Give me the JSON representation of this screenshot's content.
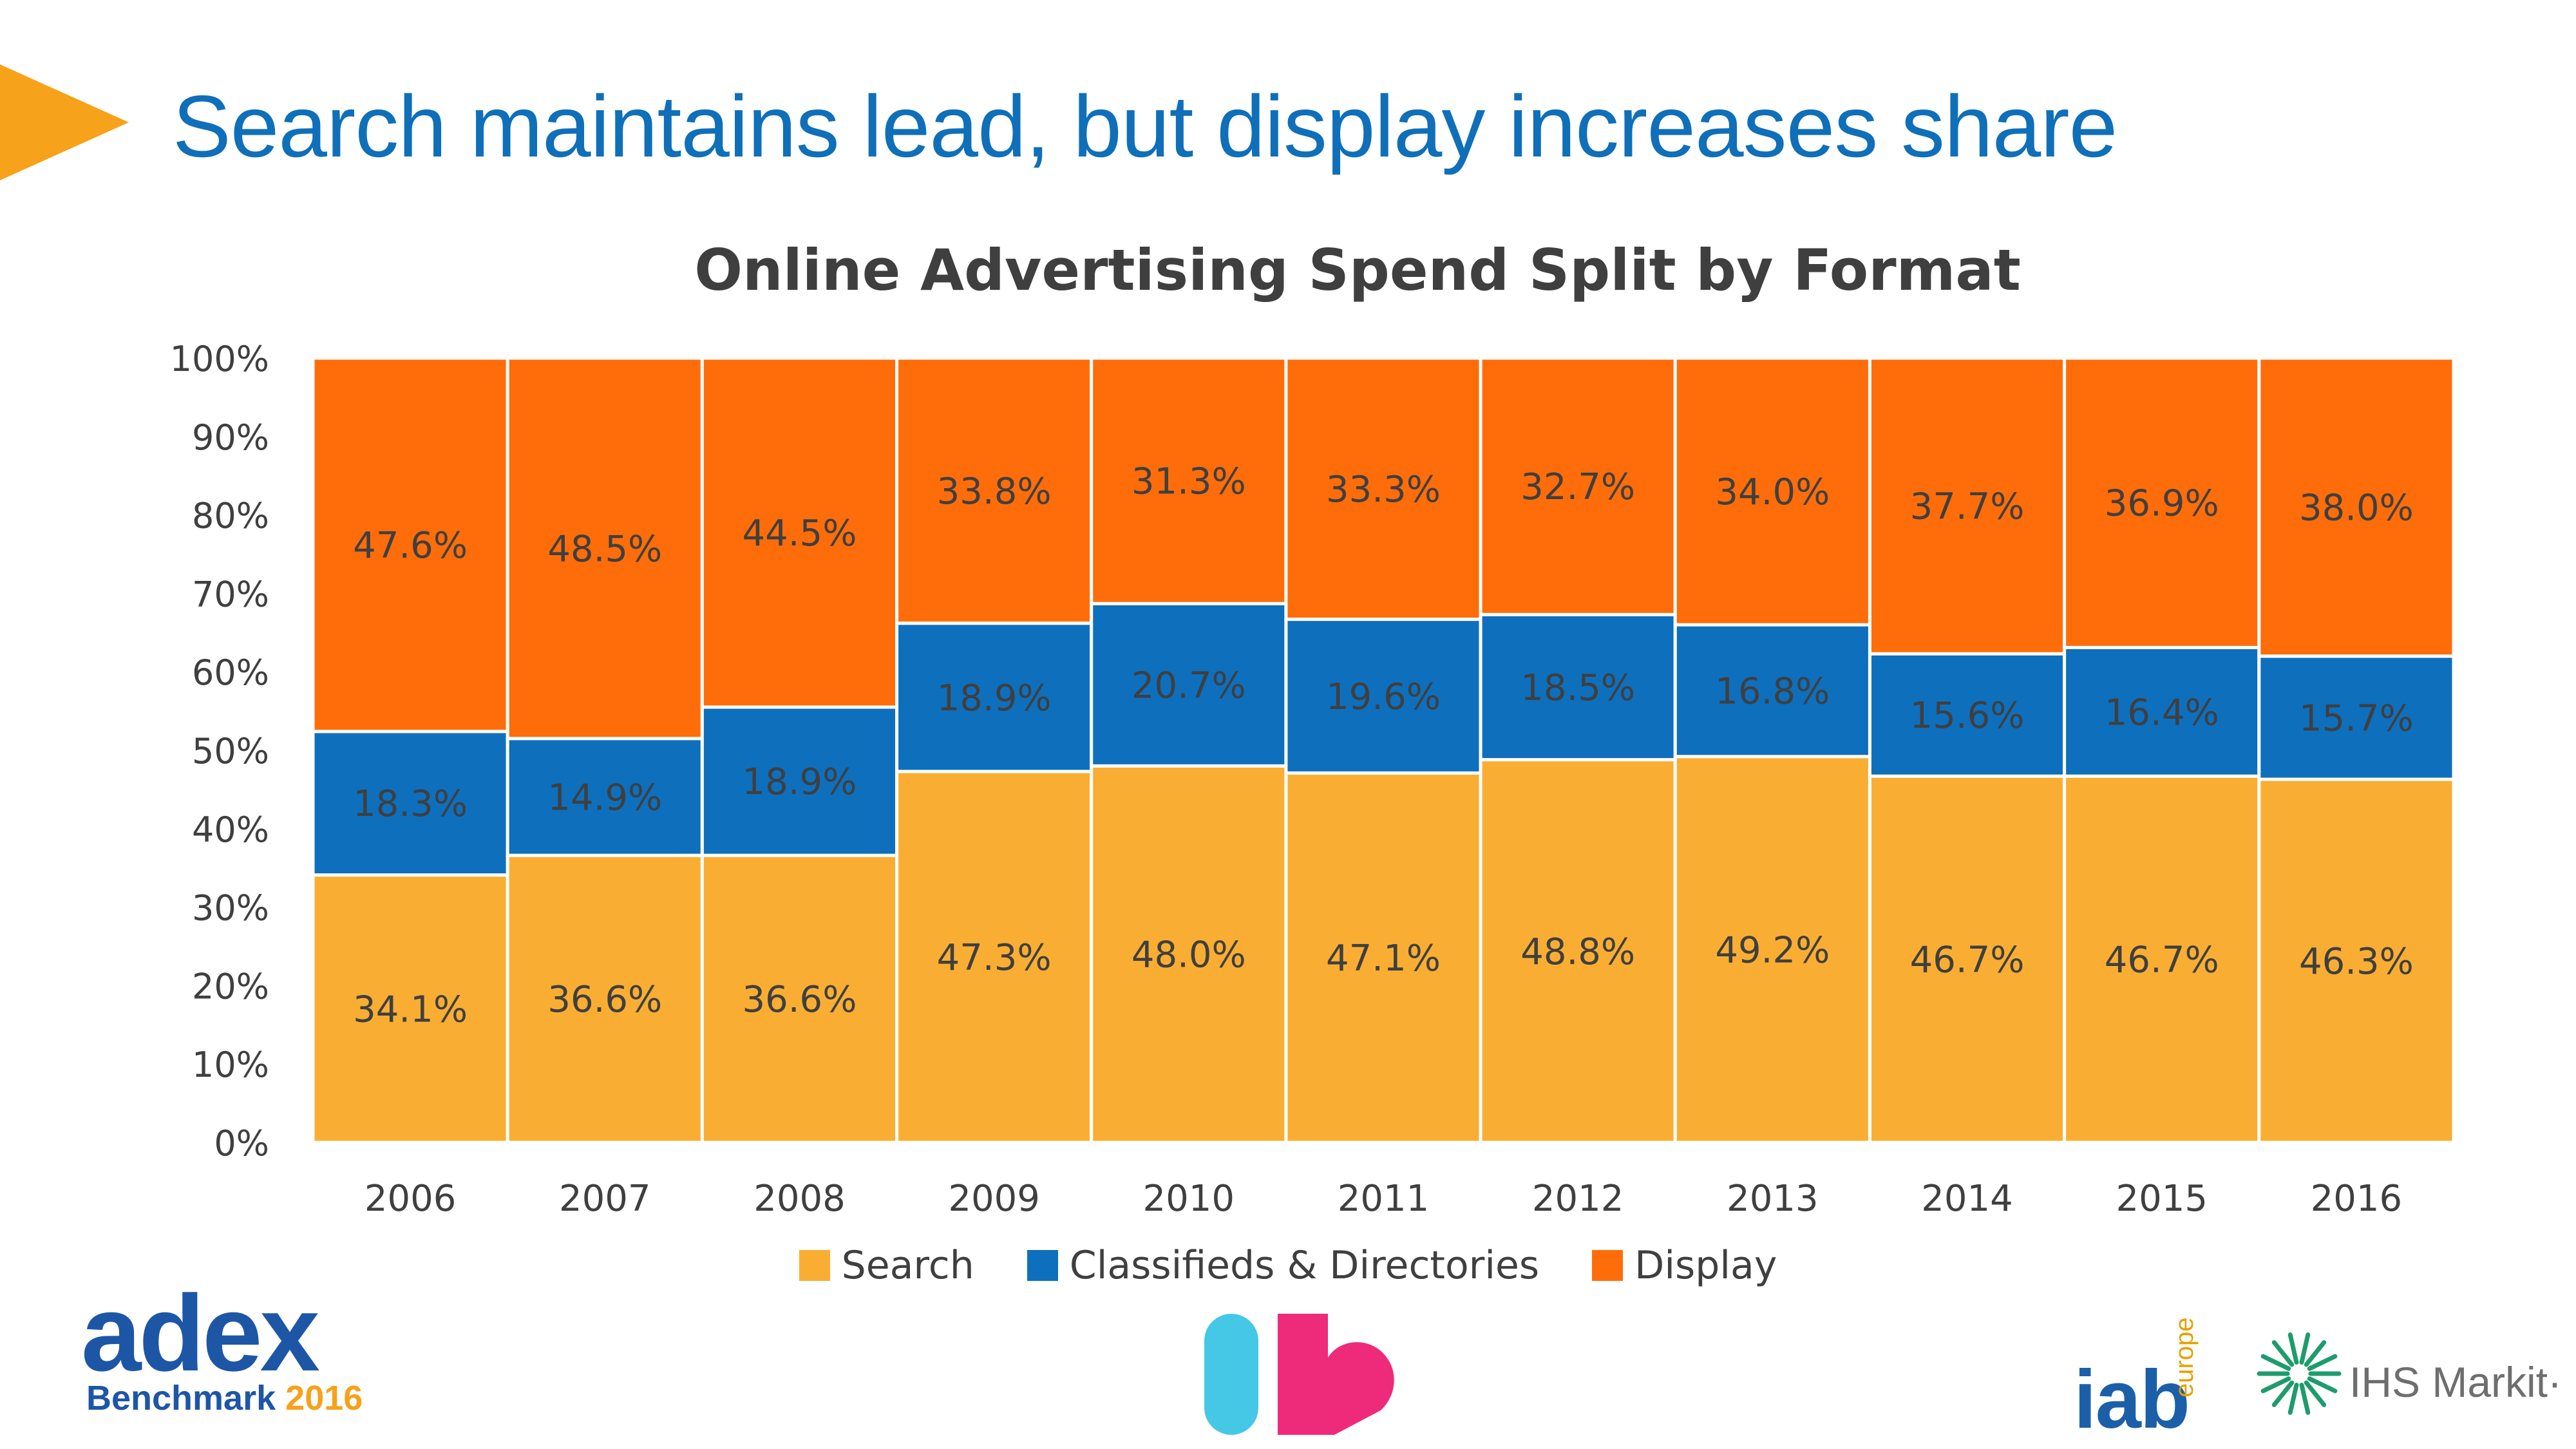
{
  "slide": {
    "title": "Search maintains lead, but display increases share",
    "accent_color": "#f6a21a",
    "title_color": "#0f6fb9"
  },
  "chart_data": {
    "type": "bar",
    "stacked": true,
    "title": "Online Advertising Spend Split by Format",
    "categories": [
      "2006",
      "2007",
      "2008",
      "2009",
      "2010",
      "2011",
      "2012",
      "2013",
      "2014",
      "2015",
      "2016"
    ],
    "series": [
      {
        "name": "Search",
        "color": "#f9ae33",
        "values": [
          34.1,
          36.6,
          36.6,
          47.3,
          48.0,
          47.1,
          48.8,
          49.2,
          46.7,
          46.7,
          46.3
        ],
        "labels": [
          "34.1%",
          "36.6%",
          "36.6%",
          "47.3%",
          "48.0%",
          "47.1%",
          "48.8%",
          "49.2%",
          "46.7%",
          "46.7%",
          "46.3%"
        ]
      },
      {
        "name": "Classifieds & Directories",
        "color": "#0e6fbd",
        "values": [
          18.3,
          14.9,
          18.9,
          18.9,
          20.7,
          19.6,
          18.5,
          16.8,
          15.6,
          16.4,
          15.7
        ],
        "labels": [
          "18.3%",
          "14.9%",
          "18.9%",
          "18.9%",
          "20.7%",
          "19.6%",
          "18.5%",
          "16.8%",
          "15.6%",
          "16.4%",
          "15.7%"
        ]
      },
      {
        "name": "Display",
        "color": "#ff6d0a",
        "values": [
          47.6,
          48.5,
          44.5,
          33.8,
          31.3,
          33.3,
          32.7,
          34.0,
          37.7,
          36.9,
          38.0
        ],
        "labels": [
          "47.6%",
          "48.5%",
          "44.5%",
          "33.8%",
          "31.3%",
          "33.3%",
          "32.7%",
          "34.0%",
          "37.7%",
          "36.9%",
          "38.0%"
        ]
      }
    ],
    "yticks": [
      "0%",
      "10%",
      "20%",
      "30%",
      "40%",
      "50%",
      "60%",
      "70%",
      "80%",
      "90%",
      "100%"
    ],
    "ylim": [
      0,
      100
    ],
    "xlabel": "",
    "ylabel": "",
    "legend_position": "bottom-center",
    "grid": false
  },
  "logos": {
    "adex": {
      "word": "adex",
      "sub": "Benchmark",
      "year": "2016"
    },
    "iab": {
      "word": "iab",
      "region": "europe"
    },
    "ihs": {
      "word": "IHS Markit",
      "mark": "·"
    },
    "ib_colors": {
      "left": "#45c8e6",
      "right": "#ee2a7b"
    }
  }
}
